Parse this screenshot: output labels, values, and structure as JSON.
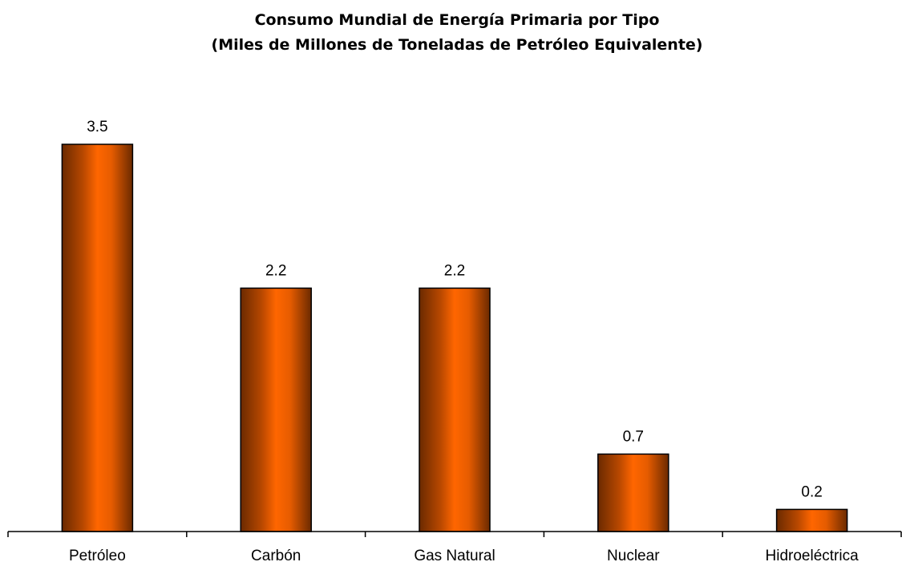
{
  "chart_data": {
    "type": "bar",
    "title": "Consumo Mundial de Energía Primaria por Tipo",
    "subtitle": "(Miles de Millones de Toneladas de Petróleo Equivalente)",
    "categories": [
      "Petróleo",
      "Carbón",
      "Gas Natural",
      "Nuclear",
      "Hidroeléctrica"
    ],
    "values": [
      3.5,
      2.2,
      2.2,
      0.7,
      0.2
    ],
    "data_labels": [
      "3.5",
      "2.2",
      "2.2",
      "0.7",
      "0.2"
    ],
    "ylim": [
      0,
      3.5
    ],
    "grid": false,
    "legend": "none",
    "bar_color": "#ff6600",
    "bar_shade_color": "#6b2a00"
  }
}
